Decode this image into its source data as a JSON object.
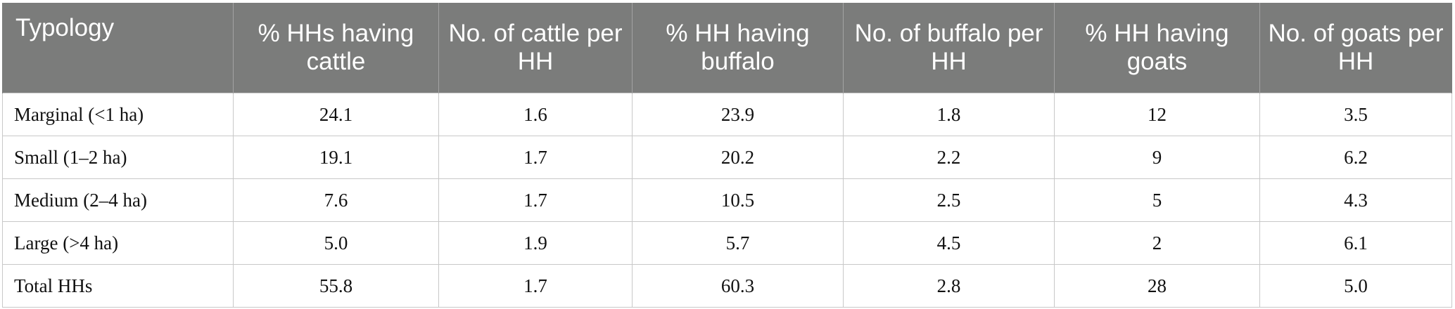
{
  "table": {
    "headers": [
      "Typology",
      "% HHs having cattle",
      "No. of cattle per HH",
      "% HH having buffalo",
      "No. of buffalo per HH",
      "% HH having goats",
      "No. of goats per HH"
    ],
    "rows": [
      [
        "Marginal (<1 ha)",
        "24.1",
        "1.6",
        "23.9",
        "1.8",
        "12",
        "3.5"
      ],
      [
        "Small (1–2 ha)",
        "19.1",
        "1.7",
        "20.2",
        "2.2",
        "9",
        "6.2"
      ],
      [
        "Medium (2–4 ha)",
        "7.6",
        "1.7",
        "10.5",
        "2.5",
        "5",
        "4.3"
      ],
      [
        "Large (>4 ha)",
        "5.0",
        "1.9",
        "5.7",
        "4.5",
        "2",
        "6.1"
      ],
      [
        "Total HHs",
        "55.8",
        "1.7",
        "60.3",
        "2.8",
        "28",
        "5.0"
      ]
    ]
  },
  "colors": {
    "header_background": "#7b7c7b",
    "header_text": "#ffffff",
    "grid_line": "#c8c8c8"
  }
}
